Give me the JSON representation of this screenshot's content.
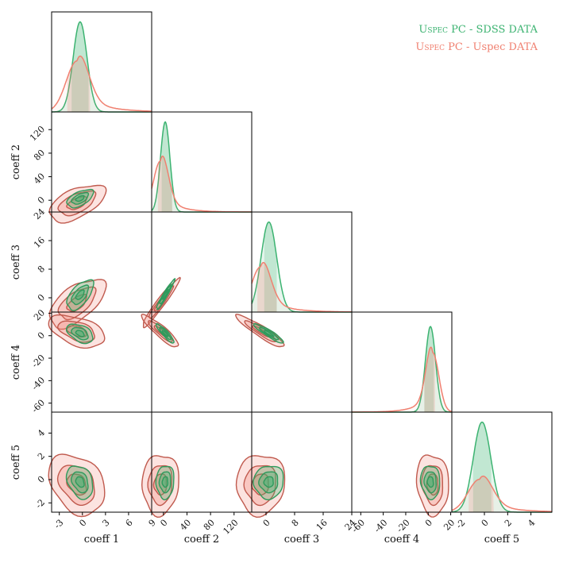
{
  "chart_data": {
    "type": "corner",
    "title": "",
    "parameters": [
      "coeff 1",
      "coeff 2",
      "coeff 3",
      "coeff 4",
      "coeff 5"
    ],
    "ranges": [
      [
        -4,
        9
      ],
      [
        -20,
        150
      ],
      [
        -4,
        24
      ],
      [
        -68,
        21
      ],
      [
        -2.8,
        5.8
      ]
    ],
    "ticks": [
      [
        "-3",
        "0",
        "3",
        "6",
        "9"
      ],
      [
        "0",
        "40",
        "80",
        "120"
      ],
      [
        "0",
        "8",
        "16",
        "24"
      ],
      [
        "-60",
        "-40",
        "-20",
        "0",
        "20"
      ],
      [
        "-2",
        "0",
        "2",
        "4"
      ]
    ],
    "tick_values": [
      [
        -3,
        0,
        3,
        6,
        9
      ],
      [
        0,
        40,
        80,
        120
      ],
      [
        0,
        8,
        16,
        24
      ],
      [
        -60,
        -40,
        -20,
        0,
        20
      ],
      [
        -2,
        0,
        2,
        4
      ]
    ],
    "series": [
      {
        "name": "Uspec PC - SDSS DATA",
        "label_smallcaps": "Uspec",
        "label_rest": " PC - SDSS DATA",
        "color": "#3cb371",
        "means": [
          -0.3,
          3,
          0.8,
          2,
          -0.2
        ],
        "sds": [
          0.9,
          8,
          2.2,
          4.5,
          0.75
        ],
        "tails": [
          0,
          0,
          0,
          0,
          0
        ],
        "peak_scale": [
          1.0,
          1.0,
          1.0,
          0.95,
          1.0
        ],
        "quantile_band": [
          [
            -1.4,
            0.8
          ],
          [
            -3,
            15
          ],
          [
            -0.5,
            3
          ],
          [
            -4,
            5
          ],
          [
            -1.0,
            0.6
          ]
        ]
      },
      {
        "name": "Uspec PC - Uspec DATA",
        "label_smallcaps": "Uspec",
        "label_rest": " PC - Uspec DATA",
        "color": "#f08070",
        "means": [
          -0.7,
          -5,
          -1.5,
          4,
          -0.4
        ],
        "sds": [
          1.4,
          12,
          2.6,
          5.5,
          1.0
        ],
        "tails": [
          1,
          1,
          1,
          -1,
          1
        ],
        "peak_scale": [
          0.62,
          0.62,
          0.55,
          0.72,
          0.4
        ],
        "quantile_band": [
          [
            -2.0,
            1.0
          ],
          [
            -10,
            15
          ],
          [
            -2.5,
            3
          ],
          [
            -4,
            6
          ],
          [
            -1.4,
            0.8
          ]
        ]
      }
    ],
    "pair_correlations": {
      "1-0": 0.55,
      "2-0": 0.6,
      "2-1": 0.97,
      "3-0": -0.45,
      "3-1": -0.9,
      "3-2": -0.92,
      "4-0": -0.3,
      "4-1": 0.05,
      "4-2": 0.05,
      "4-3": -0.1
    },
    "legend_position": "top-right"
  }
}
